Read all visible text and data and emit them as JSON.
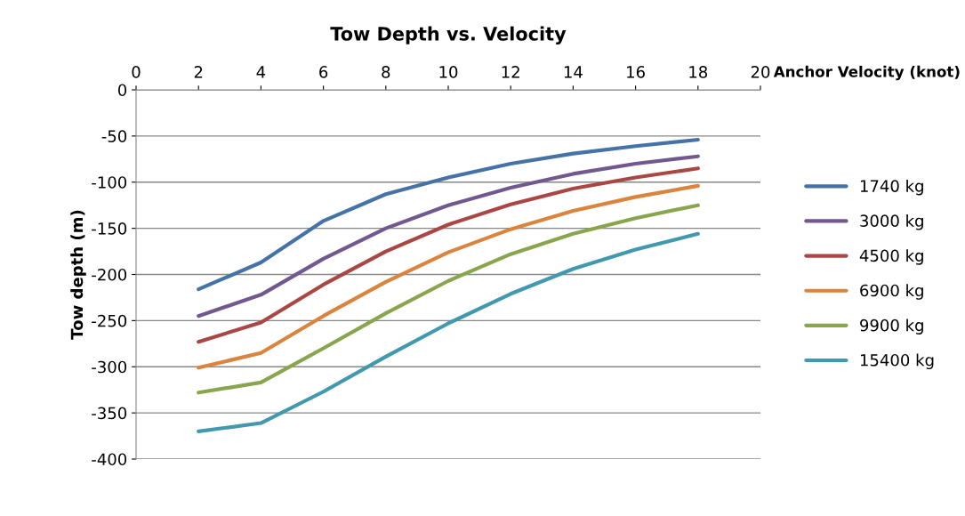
{
  "chart_data": {
    "type": "line",
    "title": "Tow Depth vs. Velocity",
    "xlabel": "Anchor Velocity (knot)",
    "ylabel": "Tow depth (m)",
    "x": [
      2,
      4,
      6,
      8,
      10,
      12,
      14,
      16,
      18
    ],
    "series": [
      {
        "name": "1740 kg",
        "color": "#4572a7",
        "values": [
          -216,
          -187,
          -142,
          -113,
          -95,
          -80,
          -69,
          -61,
          -54
        ]
      },
      {
        "name": "3000 kg",
        "color": "#71588f",
        "values": [
          -245,
          -222,
          -183,
          -150,
          -125,
          -106,
          -91,
          -80,
          -72
        ]
      },
      {
        "name": "4500 kg",
        "color": "#aa4643",
        "values": [
          -273,
          -252,
          -211,
          -175,
          -146,
          -124,
          -107,
          -95,
          -85
        ]
      },
      {
        "name": "6900 kg",
        "color": "#db843d",
        "values": [
          -301,
          -285,
          -245,
          -208,
          -176,
          -151,
          -131,
          -116,
          -104
        ]
      },
      {
        "name": "9900 kg",
        "color": "#89a54e",
        "values": [
          -328,
          -317,
          -280,
          -242,
          -207,
          -178,
          -156,
          -139,
          -125
        ]
      },
      {
        "name": "15400 kg",
        "color": "#4198af",
        "values": [
          -370,
          -361,
          -327,
          -289,
          -253,
          -221,
          -194,
          -173,
          -156
        ]
      }
    ],
    "xlim": [
      0,
      20
    ],
    "xticks": [
      0,
      2,
      4,
      6,
      8,
      10,
      12,
      14,
      16,
      18,
      20
    ],
    "ylim": [
      -400,
      0
    ],
    "yticks": [
      -400,
      -350,
      -300,
      -250,
      -200,
      -150,
      -100,
      -50,
      0
    ],
    "grid": "y",
    "legend": "right",
    "marker": "none",
    "line_style": "solid"
  }
}
